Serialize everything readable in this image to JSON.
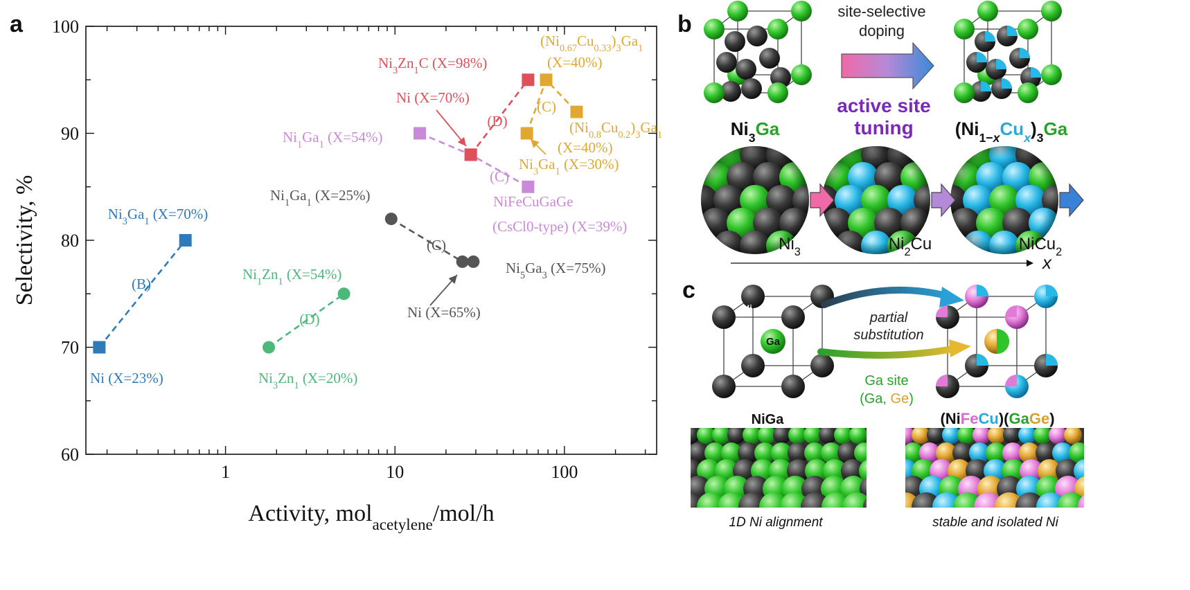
{
  "panels": {
    "a": "a",
    "b": "b",
    "c": "c"
  },
  "chart_data": {
    "type": "scatter",
    "xscale": "log",
    "xlim": [
      0.15,
      350
    ],
    "ylim": [
      60,
      100
    ],
    "xticks": [
      {
        "v": 1,
        "t": "1"
      },
      {
        "v": 10,
        "t": "10"
      },
      {
        "v": 100,
        "t": "100"
      }
    ],
    "yticks": [
      {
        "v": 60,
        "t": "60"
      },
      {
        "v": 70,
        "t": "70"
      },
      {
        "v": 80,
        "t": "80"
      },
      {
        "v": 90,
        "t": "90"
      },
      {
        "v": 100,
        "t": "100"
      }
    ],
    "xlabel": {
      "main": "Activity,  mol",
      "sub": "acetylene",
      "tail": "/mol/h"
    },
    "ylabel": "Selectivity, %",
    "series": [
      {
        "group": "B",
        "color": "#2f7ab8",
        "marker": "square",
        "points": [
          {
            "x": 0.18,
            "y": 70
          },
          {
            "x": 0.58,
            "y": 80
          }
        ]
      },
      {
        "group": "D",
        "color": "#4cb87a",
        "marker": "circle",
        "points": [
          {
            "x": 1.8,
            "y": 70
          },
          {
            "x": 5.0,
            "y": 75
          }
        ]
      },
      {
        "group": "C",
        "color": "#555555",
        "marker": "circle",
        "points": [
          {
            "x": 9.5,
            "y": 82
          },
          {
            "x": 25,
            "y": 78
          },
          {
            "x": 29,
            "y": 78
          }
        ]
      },
      {
        "group": "C",
        "color": "#c98ad8",
        "marker": "square",
        "points": [
          {
            "x": 14,
            "y": 90
          },
          {
            "x": 28,
            "y": 88
          },
          {
            "x": 61,
            "y": 85
          }
        ]
      },
      {
        "group": "D",
        "color": "#e0505a",
        "marker": "square",
        "points": [
          {
            "x": 28,
            "y": 88
          },
          {
            "x": 61,
            "y": 95
          }
        ]
      },
      {
        "group": "C",
        "color": "#e0a830",
        "marker": "square",
        "points": [
          {
            "x": 60,
            "y": 90
          },
          {
            "x": 78,
            "y": 95
          },
          {
            "x": 118,
            "y": 92
          }
        ]
      }
    ],
    "labels": [
      {
        "color": "#2f7ab8",
        "parts": [
          [
            "Ni"
          ],
          [
            "3",
            "sub"
          ],
          [
            "Ga"
          ],
          [
            "1",
            "sub"
          ],
          [
            " (X=70%)"
          ]
        ]
      },
      {
        "color": "#2f7ab8",
        "parts": [
          [
            "(B)"
          ]
        ]
      },
      {
        "color": "#2f7ab8",
        "parts": [
          [
            "Ni (X=23%)"
          ]
        ]
      },
      {
        "color": "#4cb87a",
        "parts": [
          [
            "Ni"
          ],
          [
            "1",
            "sub"
          ],
          [
            "Zn"
          ],
          [
            "1",
            "sub"
          ],
          [
            " (X=54%)"
          ]
        ]
      },
      {
        "color": "#4cb87a",
        "parts": [
          [
            "(D)"
          ]
        ]
      },
      {
        "color": "#4cb87a",
        "parts": [
          [
            "Ni"
          ],
          [
            "3",
            "sub"
          ],
          [
            "Zn"
          ],
          [
            "1",
            "sub"
          ],
          [
            " (X=20%)"
          ]
        ]
      },
      {
        "color": "#555555",
        "parts": [
          [
            "Ni"
          ],
          [
            "1",
            "sub"
          ],
          [
            "Ga"
          ],
          [
            "1",
            "sub"
          ],
          [
            " (X=25%)"
          ]
        ]
      },
      {
        "color": "#555555",
        "parts": [
          [
            "(C)"
          ]
        ]
      },
      {
        "color": "#555555",
        "parts": [
          [
            "Ni"
          ],
          [
            "5",
            "sub"
          ],
          [
            "Ga"
          ],
          [
            "3",
            "sub"
          ],
          [
            " (X=75%)"
          ]
        ]
      },
      {
        "color": "#555555",
        "parts": [
          [
            "Ni (X=65%)"
          ]
        ]
      },
      {
        "color": "#c98ad8",
        "parts": [
          [
            "Ni"
          ],
          [
            "1",
            "sub"
          ],
          [
            "Ga"
          ],
          [
            "1",
            "sub"
          ],
          [
            " (X=54%)"
          ]
        ]
      },
      {
        "color": "#c98ad8",
        "parts": [
          [
            "(C)"
          ]
        ]
      },
      {
        "color": "#c98ad8",
        "parts": [
          [
            "NiFeCuGaGe"
          ]
        ]
      },
      {
        "color": "#c98ad8",
        "parts": [
          [
            "(CsCl0-type) (X=39%)"
          ]
        ]
      },
      {
        "color": "#e0505a",
        "parts": [
          [
            "Ni"
          ],
          [
            "3",
            "sub"
          ],
          [
            "Zn"
          ],
          [
            "1",
            "sub"
          ],
          [
            "C (X=98%)"
          ]
        ]
      },
      {
        "color": "#e0505a",
        "parts": [
          [
            "Ni (X=70%)"
          ]
        ]
      },
      {
        "color": "#e0505a",
        "parts": [
          [
            "(D)"
          ]
        ]
      },
      {
        "color": "#e0a830",
        "parts": [
          [
            "(Ni"
          ],
          [
            "0.67",
            "sub"
          ],
          [
            "Cu"
          ],
          [
            "0.33",
            "sub"
          ],
          [
            ")"
          ],
          [
            "3",
            "sub"
          ],
          [
            "Ga"
          ],
          [
            "1",
            "sub"
          ]
        ]
      },
      {
        "color": "#e0a830",
        "parts": [
          [
            "(X=40%)"
          ]
        ]
      },
      {
        "color": "#e0a830",
        "parts": [
          [
            "(C)"
          ]
        ]
      },
      {
        "color": "#e0a830",
        "parts": [
          [
            "(Ni"
          ],
          [
            "0.8",
            "sub"
          ],
          [
            "Cu"
          ],
          [
            "0.2",
            "sub"
          ],
          [
            ")"
          ],
          [
            "3",
            "sub"
          ],
          [
            "Ga"
          ],
          [
            "1",
            "sub"
          ]
        ]
      },
      {
        "color": "#e0a830",
        "parts": [
          [
            "(X=40%)"
          ]
        ]
      },
      {
        "color": "#e0a830",
        "parts": [
          [
            "Ni"
          ],
          [
            "3",
            "sub"
          ],
          [
            "Ga"
          ],
          [
            "1",
            "sub"
          ],
          [
            " (X=30%)"
          ]
        ]
      }
    ]
  },
  "panel_b": {
    "arrow_top": "site-selective",
    "arrow_bottom": "doping",
    "tuning_1": "active site",
    "tuning_2": "tuning",
    "left_formula": [
      [
        "Ni",
        "#111"
      ],
      [
        "3",
        "#111",
        "sub"
      ],
      [
        "Ga",
        "#2aa12a"
      ]
    ],
    "right_formula": [
      [
        "(Ni",
        "#111"
      ],
      [
        "1−",
        "#111",
        "sub"
      ],
      [
        "x",
        "#111",
        "subi"
      ],
      [
        "Cu",
        "#2aa8d8"
      ],
      [
        "x",
        "#2aa8d8",
        "subi"
      ],
      [
        ")",
        "#111"
      ],
      [
        "3",
        "#111",
        "sub"
      ],
      [
        "Ga",
        "#2aa12a"
      ]
    ],
    "sites": [
      [
        "Ni"
      ],
      [
        "3",
        "sub"
      ]
    ],
    "sites2": [
      [
        "Ni"
      ],
      [
        "2",
        "sub"
      ],
      [
        "Cu"
      ]
    ],
    "sites3": [
      [
        "NiCu"
      ],
      [
        "2",
        "sub"
      ]
    ],
    "axis_x": "x"
  },
  "panel_c": {
    "arrow_top_1": "partial",
    "arrow_top_2": "substitution",
    "ga_site": "Ga site",
    "ga_ge": [
      [
        "(Ga, ",
        "#2aa12a"
      ],
      [
        "Ge",
        "#d9a030"
      ],
      [
        ")",
        "#2aa12a"
      ]
    ],
    "left_name": "NiGa",
    "right_name": [
      [
        "(Ni",
        "#111"
      ],
      [
        "Fe",
        "#d86ad0"
      ],
      [
        "Cu",
        "#2aa8d8"
      ],
      [
        ")(",
        "#111"
      ],
      [
        "Ga",
        "#2aa12a"
      ],
      [
        "Ge",
        "#d9a030"
      ],
      [
        ")",
        "#111"
      ]
    ],
    "atom_ni": "Ni",
    "atom_ga": "Ga",
    "caption_left": "1D Ni alignment",
    "caption_right": "stable and isolated Ni"
  }
}
